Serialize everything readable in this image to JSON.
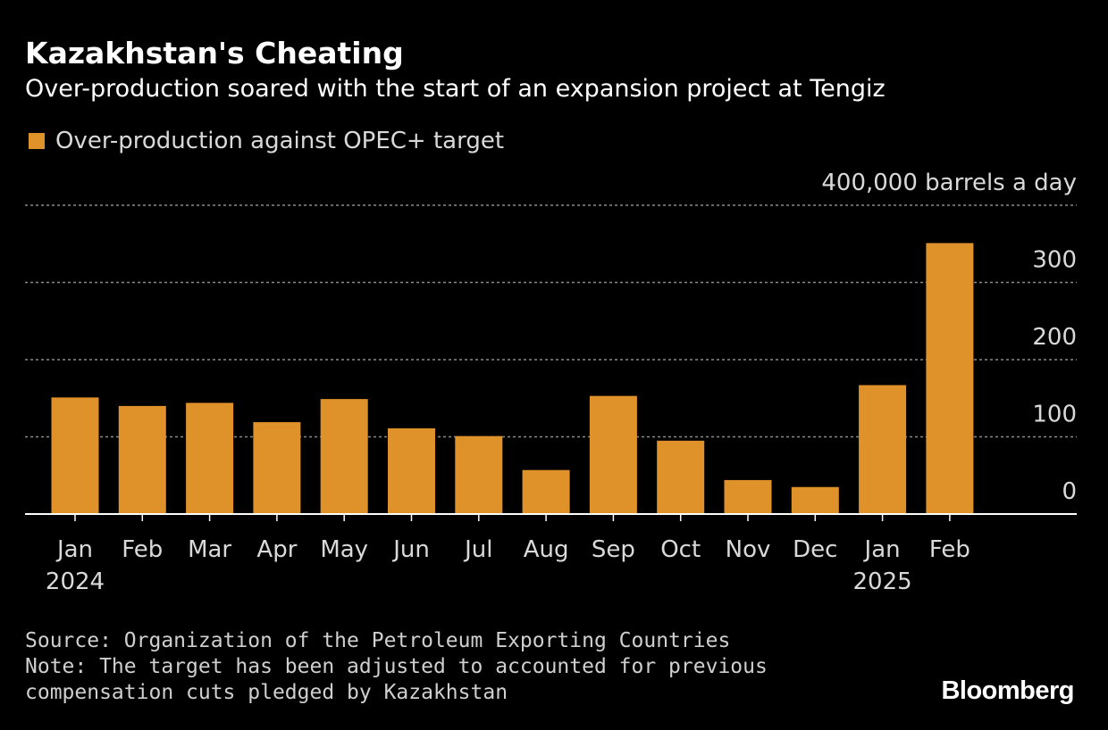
{
  "header": {
    "title": "Kazakhstan's Cheating",
    "subtitle": "Over-production soared with the start of an expansion project at Tengiz"
  },
  "legend": {
    "label": "Over-production against OPEC+ target",
    "color": "#e0922a"
  },
  "chart_data": {
    "type": "bar",
    "title": "Kazakhstan's Cheating",
    "subtitle": "Over-production soared with the start of an expansion project at Tengiz",
    "unit_label": "400,000 barrels a day",
    "categories": [
      "Jan",
      "Feb",
      "Mar",
      "Apr",
      "May",
      "Jun",
      "Jul",
      "Aug",
      "Sep",
      "Oct",
      "Nov",
      "Dec",
      "Jan",
      "Feb"
    ],
    "year_labels": [
      {
        "index": 0,
        "label": "2024"
      },
      {
        "index": 12,
        "label": "2025"
      }
    ],
    "series": [
      {
        "name": "Over-production against OPEC+ target",
        "color": "#e0922a",
        "values": [
          151,
          140,
          144,
          119,
          149,
          111,
          101,
          57,
          153,
          95,
          44,
          35,
          167,
          351
        ]
      }
    ],
    "ylim": [
      0,
      400
    ],
    "yticks": [
      {
        "value": 0,
        "label": "0"
      },
      {
        "value": 100,
        "label": "100"
      },
      {
        "value": 200,
        "label": "200"
      },
      {
        "value": 300,
        "label": "300"
      }
    ],
    "grid": true,
    "xlabel": "",
    "ylabel": "",
    "legend_position": "top-left"
  },
  "footer": {
    "source": "Source: Organization of the Petroleum Exporting Countries",
    "note_line1": "Note: The target has been adjusted to accounted for previous",
    "note_line2": "compensation cuts pledged by Kazakhstan",
    "brand": "Bloomberg"
  }
}
